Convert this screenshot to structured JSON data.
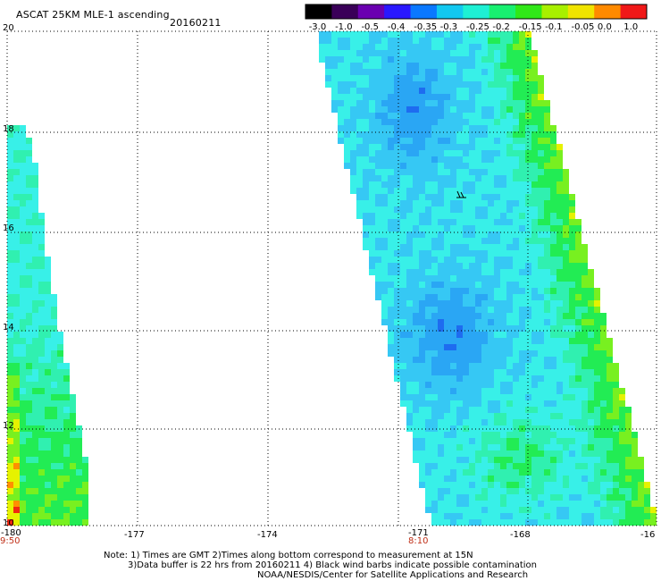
{
  "header": {
    "title": "ASCAT 25KM MLE-1 ascending",
    "date": "20160211"
  },
  "colorbar": {
    "labels": [
      "-3.0",
      "-1.0",
      "-0.5",
      "-0.4",
      "-0.35",
      "-0.3",
      "-0.25",
      "-0.2",
      "-0.15",
      "-0.1",
      "-0.05",
      "0.0",
      "1.0"
    ],
    "colors": [
      "#000000",
      "#3a0058",
      "#6a00b0",
      "#2a18ff",
      "#0a78ff",
      "#12c8f0",
      "#1ef0d4",
      "#18f070",
      "#30e818",
      "#a8f000",
      "#f0e400",
      "#ff8a00",
      "#f01818"
    ]
  },
  "map": {
    "lon_labels": [
      "-180",
      "-177",
      "-174",
      "-171",
      "-168",
      "-16"
    ],
    "lat_labels": [
      "20",
      "18",
      "16",
      "14",
      "12",
      "10"
    ],
    "time_labels": [
      "9:50",
      "8:10"
    ],
    "colors": {
      "deep_blue": "#1e6cf0",
      "blue": "#2aa6f4",
      "light_blue": "#36c8f4",
      "cyan": "#38f0e8",
      "aqua_green": "#30f0b0",
      "green": "#22ec54",
      "lime": "#78f020",
      "yellow": "#e6f200",
      "orange": "#ff9000",
      "red": "#f02810"
    }
  },
  "notes": {
    "line1": "Note: 1) Times are GMT 2)Times along bottom correspond to measurement at 15N",
    "line2": "3)Data buffer is 22 hrs from 20160211 4) Black wind barbs indicate possible contamination",
    "line3": "NOAA/NESDIS/Center for Satellite Applications and Research"
  }
}
